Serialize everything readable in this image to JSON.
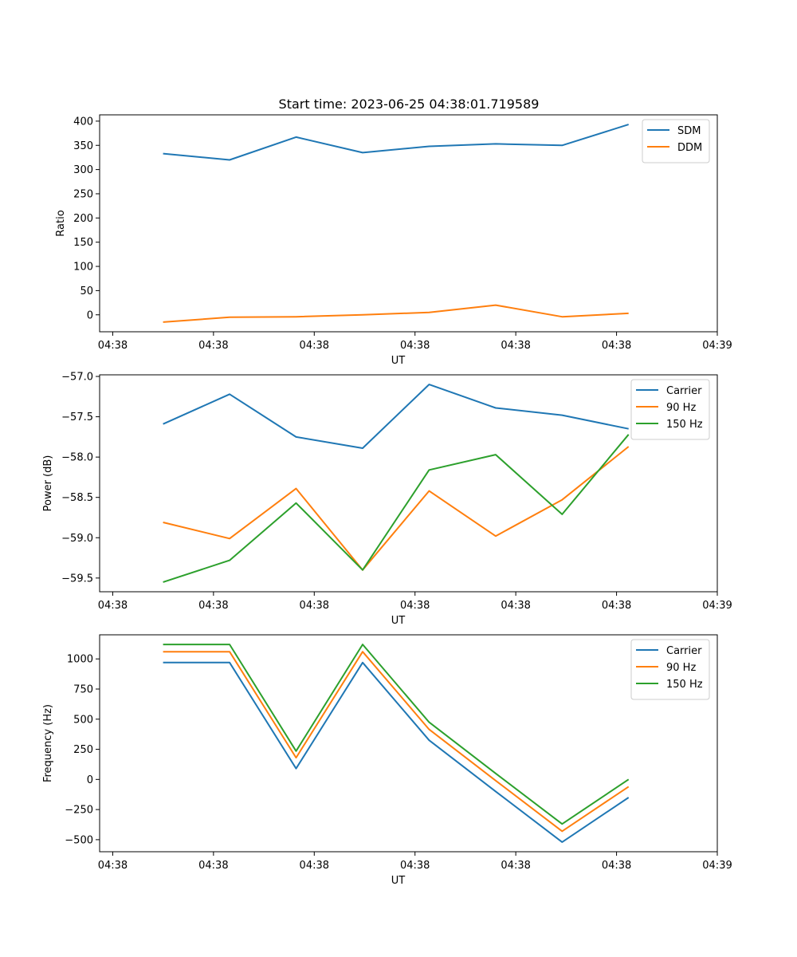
{
  "figure": {
    "title": "Start time: 2023-06-25 04:38:01.719589"
  },
  "colors": {
    "blue": "#1f77b4",
    "orange": "#ff7f0e",
    "green": "#2ca02c"
  },
  "chart_data": [
    {
      "type": "line",
      "title": "Start time: 2023-06-25 04:38:01.719589",
      "xlabel": "UT",
      "ylabel": "Ratio",
      "x_tick_labels": [
        "04:38",
        "04:38",
        "04:38",
        "04:38",
        "04:38",
        "04:38",
        "04:39"
      ],
      "x_tick_positions": [
        0,
        1,
        2,
        3,
        4,
        5,
        6
      ],
      "xlim": [
        -0.13,
        6.0
      ],
      "x": [
        0.5,
        1.16,
        1.82,
        2.48,
        3.14,
        3.8,
        4.46,
        5.12
      ],
      "ylim": [
        -35,
        413
      ],
      "y_ticks": [
        0,
        50,
        100,
        150,
        200,
        250,
        300,
        350,
        400
      ],
      "y_tick_labels": [
        "0",
        "50",
        "100",
        "150",
        "200",
        "250",
        "300",
        "350",
        "400"
      ],
      "legend_position": "top-right",
      "grid": false,
      "series": [
        {
          "name": "SDM",
          "color": "#1f77b4",
          "values": [
            333,
            320,
            367,
            335,
            348,
            353,
            350,
            393
          ]
        },
        {
          "name": "DDM",
          "color": "#ff7f0e",
          "values": [
            -15,
            -5,
            -4,
            0,
            5,
            20,
            -4,
            3
          ]
        }
      ]
    },
    {
      "type": "line",
      "xlabel": "UT",
      "ylabel": "Power (dB)",
      "x_tick_labels": [
        "04:38",
        "04:38",
        "04:38",
        "04:38",
        "04:38",
        "04:38",
        "04:39"
      ],
      "x_tick_positions": [
        0,
        1,
        2,
        3,
        4,
        5,
        6
      ],
      "xlim": [
        -0.13,
        6.0
      ],
      "x": [
        0.5,
        1.16,
        1.82,
        2.48,
        3.14,
        3.8,
        4.46,
        5.12
      ],
      "ylim": [
        -59.67,
        -56.98
      ],
      "y_ticks": [
        -59.5,
        -59.0,
        -58.5,
        -58.0,
        -57.5,
        -57.0
      ],
      "y_tick_labels": [
        "−59.5",
        "−59.0",
        "−58.5",
        "−58.0",
        "−57.5",
        "−57.0"
      ],
      "legend_position": "top-right",
      "grid": false,
      "series": [
        {
          "name": "Carrier",
          "color": "#1f77b4",
          "values": [
            -57.59,
            -57.22,
            -57.75,
            -57.89,
            -57.1,
            -57.39,
            -57.48,
            -57.65
          ]
        },
        {
          "name": "90 Hz",
          "color": "#ff7f0e",
          "values": [
            -58.81,
            -59.01,
            -58.39,
            -59.4,
            -58.42,
            -58.98,
            -58.53,
            -57.87
          ]
        },
        {
          "name": "150 Hz",
          "color": "#2ca02c",
          "values": [
            -59.55,
            -59.28,
            -58.57,
            -59.4,
            -58.16,
            -57.97,
            -58.71,
            -57.72
          ]
        }
      ]
    },
    {
      "type": "line",
      "xlabel": "UT",
      "ylabel": "Frequency (Hz)",
      "x_tick_labels": [
        "04:38",
        "04:38",
        "04:38",
        "04:38",
        "04:38",
        "04:38",
        "04:39"
      ],
      "x_tick_positions": [
        0,
        1,
        2,
        3,
        4,
        5,
        6
      ],
      "xlim": [
        -0.13,
        6.0
      ],
      "x": [
        0.5,
        1.16,
        1.82,
        2.48,
        3.14,
        3.8,
        4.46,
        5.12
      ],
      "ylim": [
        -600,
        1200
      ],
      "y_ticks": [
        -500,
        -250,
        0,
        250,
        500,
        750,
        1000
      ],
      "y_tick_labels": [
        "−500",
        "−250",
        "0",
        "250",
        "500",
        "750",
        "1000"
      ],
      "legend_position": "top-right",
      "grid": false,
      "series": [
        {
          "name": "Carrier",
          "color": "#1f77b4",
          "values": [
            970,
            970,
            90,
            970,
            325,
            -100,
            -520,
            -150
          ]
        },
        {
          "name": "90 Hz",
          "color": "#ff7f0e",
          "values": [
            1060,
            1060,
            180,
            1060,
            415,
            -10,
            -430,
            -60
          ]
        },
        {
          "name": "150 Hz",
          "color": "#2ca02c",
          "values": [
            1120,
            1120,
            235,
            1120,
            475,
            50,
            -370,
            0
          ]
        }
      ]
    }
  ]
}
